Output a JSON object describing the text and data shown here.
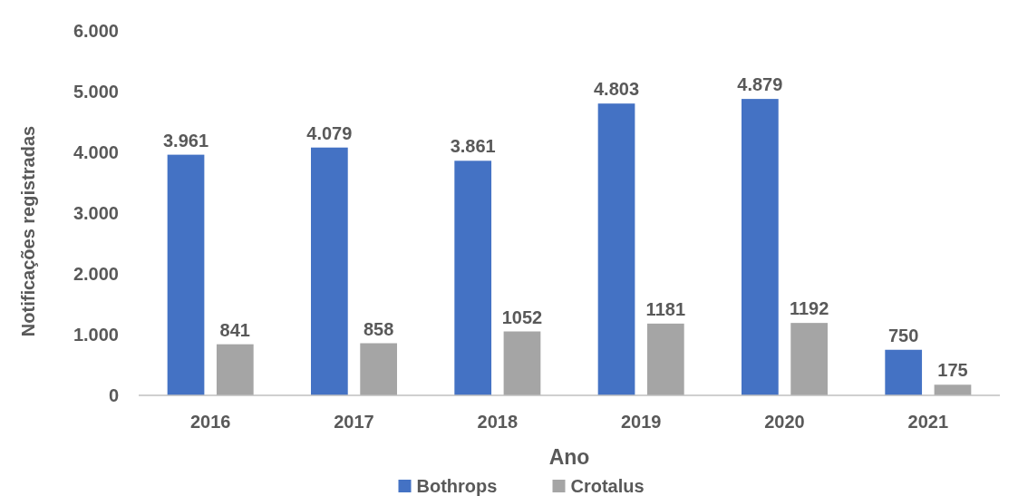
{
  "chart_data": {
    "type": "bar",
    "xlabel": "Ano",
    "ylabel": "Notificações registradas",
    "categories": [
      "2016",
      "2017",
      "2018",
      "2019",
      "2020",
      "2021"
    ],
    "series": [
      {
        "name": "Bothrops",
        "color": "#4472c4",
        "values": [
          3961,
          4079,
          3861,
          4803,
          4879,
          750
        ],
        "value_labels": [
          "3.961",
          "4.079",
          "3.861",
          "4.803",
          "4.879",
          "750"
        ]
      },
      {
        "name": "Crotalus",
        "color": "#a5a5a5",
        "values": [
          841,
          858,
          1052,
          1181,
          1192,
          175
        ],
        "value_labels": [
          "841",
          "858",
          "1052",
          "1181",
          "1192",
          "175"
        ]
      }
    ],
    "ylim": [
      0,
      6000
    ],
    "yticks": [
      {
        "value": 0,
        "label": "0"
      },
      {
        "value": 1000,
        "label": "1.000"
      },
      {
        "value": 2000,
        "label": "2.000"
      },
      {
        "value": 3000,
        "label": "3.000"
      },
      {
        "value": 4000,
        "label": "4.000"
      },
      {
        "value": 5000,
        "label": "5.000"
      },
      {
        "value": 6000,
        "label": "6.000"
      }
    ],
    "grid": false,
    "legend": "bottom"
  }
}
